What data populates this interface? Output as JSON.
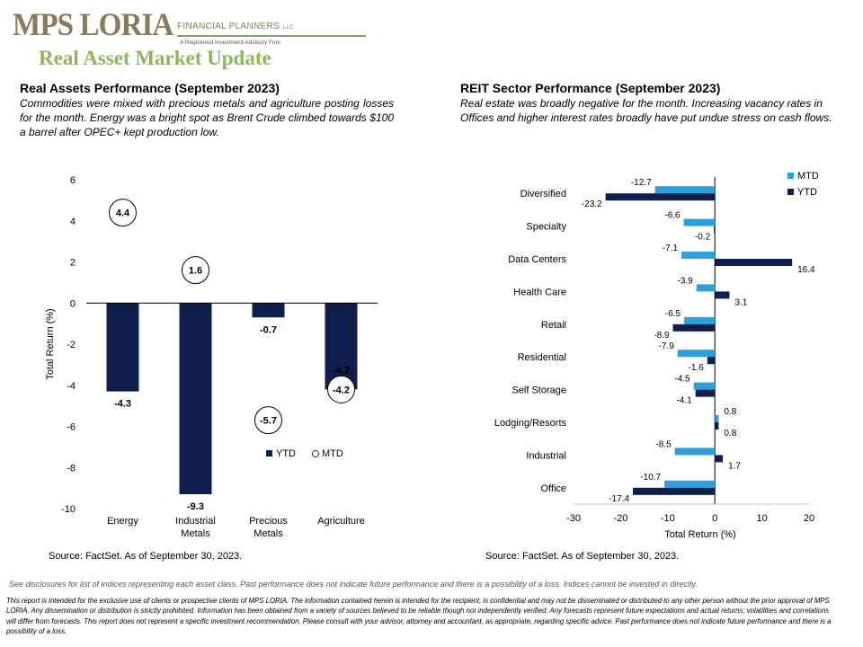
{
  "header": {
    "logo_text": "MPS LORIA",
    "logo_sub": "FINANCIAL PLANNERS",
    "logo_llc": "LLC",
    "logo_tagline": "A Registered Investment Advisory Firm",
    "page_title": "Real Asset Market Update",
    "brand_color": "#8ab85a"
  },
  "left_section": {
    "title": "Real Assets Performance (September 2023)",
    "body": "Commodities were  mixed with precious metals and agriculture posting losses for the month. Energy was a bright spot as Brent Crude climbed towards $100 a barrel after OPEC+ kept production low.",
    "source": "Source: FactSet. As of September 30, 2023."
  },
  "right_section": {
    "title": "REIT Sector Performance (September 2023)",
    "body": "Real estate was broadly negative for the month. Increasing vacancy rates in Offices and higher interest rates broadly have put undue stress on cash flows.",
    "source": "Source: FactSet. As of September 30, 2023."
  },
  "chart_data": [
    {
      "type": "bar",
      "categories": [
        "Energy",
        "Industrial Metals",
        "Precious Metals",
        "Agriculture"
      ],
      "category_labels": [
        [
          "Energy"
        ],
        [
          "Industrial",
          "Metals"
        ],
        [
          "Precious",
          "Metals"
        ],
        [
          "Agriculture"
        ]
      ],
      "series": [
        {
          "name": "YTD",
          "values": [
            -4.3,
            -9.3,
            -0.7,
            -4.2
          ],
          "color": "#0f1e4a",
          "style": "bar"
        },
        {
          "name": "MTD",
          "values": [
            4.4,
            1.6,
            -5.7,
            -4.2
          ],
          "color": "#ffffff",
          "style": "circle-marker"
        }
      ],
      "ylabel": "Total Return (%)",
      "ylim": [
        -10,
        6
      ],
      "yticks": [
        -10,
        -8,
        -6,
        -4,
        -2,
        0,
        2,
        4,
        6
      ],
      "grid": false,
      "legend": "bottom-right"
    },
    {
      "type": "bar",
      "orientation": "horizontal",
      "categories": [
        "Diversified",
        "Specialty",
        "Data Centers",
        "Health Care",
        "Retail",
        "Residential",
        "Self Storage",
        "Lodging/Resorts",
        "Industrial",
        "Office"
      ],
      "series": [
        {
          "name": "MTD",
          "values": [
            -12.7,
            -6.6,
            -7.1,
            -3.9,
            -6.5,
            -7.9,
            -4.5,
            0.8,
            -8.5,
            -10.7
          ],
          "color": "#2e9fd8"
        },
        {
          "name": "YTD",
          "values": [
            -23.2,
            -0.2,
            16.4,
            3.1,
            -8.9,
            -1.6,
            -4.1,
            0.8,
            1.7,
            -17.4
          ],
          "color": "#0f1e4a"
        }
      ],
      "xlabel": "Total Return (%)",
      "xlim": [
        -30,
        20
      ],
      "xticks": [
        -30,
        -20,
        -10,
        0,
        10,
        20
      ],
      "grid": false,
      "legend": "top-right"
    }
  ],
  "disclaimer_short": "See disclosures for list of indices representing each asset class. Past performance does not indicate future performance and there is a possibility of a loss. Indices cannot be invested in directly.",
  "disclaimer_long": "This report is intended for the exclusive use of clients or prospective clients of MPS LORIA. The information contained herein is intended for the recipient, is confidential and may not be disseminated or distributed to any other person without the prior approval of MPS LORIA. Any dissemination or distribution is strictly prohibited. Information has been obtained from a variety of sources believed to be reliable though not independently verified. Any forecasts represent future expectations and actual returns; volatilities and correlations will differ from forecasts. This report does not represent a specific investment recommendation. Please consult with your advisor, attorney and accountant, as appropriate, regarding specific advice. Past performance does not indicate future performance and there is a possibility of a loss."
}
